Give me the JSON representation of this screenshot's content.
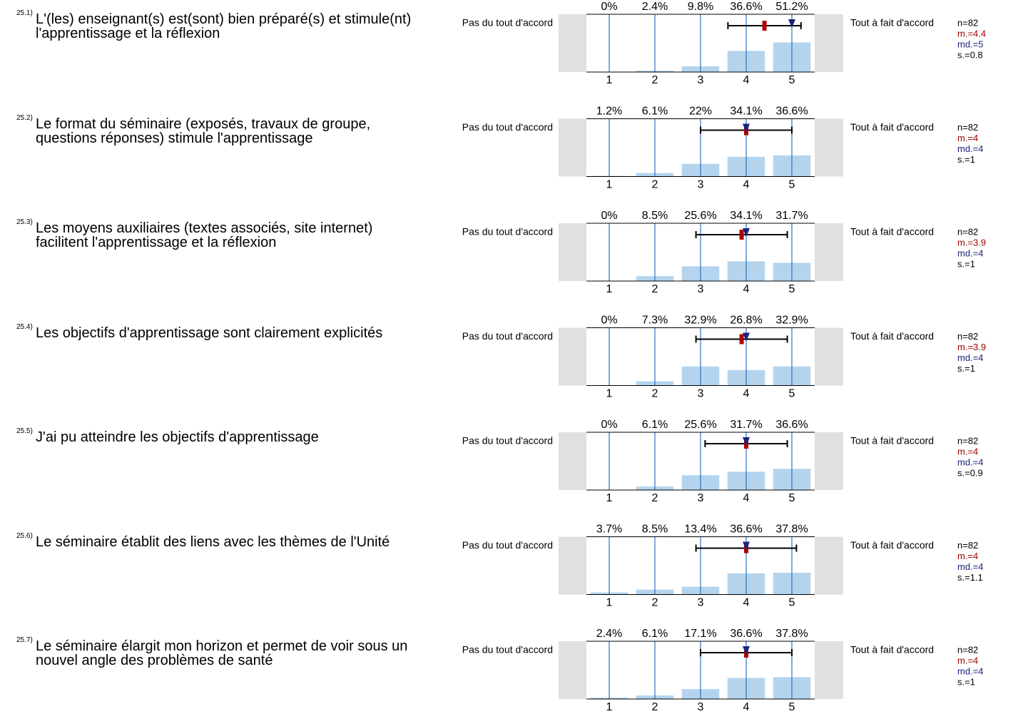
{
  "chart_data": [
    {
      "type": "bar",
      "number": "25.1)",
      "title": "L'(les) enseignant(s) est(sont) bien préparé(s) et stimule(nt) l'apprentissage et la réflexion",
      "left_label": "Pas du tout d'accord",
      "right_label": "Tout à fait d'accord",
      "x": [
        1,
        2,
        3,
        4,
        5
      ],
      "values": [
        0,
        2.4,
        9.8,
        36.6,
        51.2
      ],
      "value_labels": [
        "0%",
        "2.4%",
        "9.8%",
        "36.6%",
        "51.2%"
      ],
      "xlim": [
        0.5,
        5.5
      ],
      "ylim": [
        0,
        100
      ],
      "n": {
        "value": 82,
        "label": "n=82"
      },
      "mean": {
        "value": 4.4,
        "label": "m.=4.4"
      },
      "median": {
        "value": 5,
        "label": "md.=5"
      },
      "sd": {
        "value": 0.8,
        "label": "s.=0.8"
      }
    },
    {
      "type": "bar",
      "number": "25.2)",
      "title": "Le format du séminaire (exposés, travaux de groupe, questions réponses) stimule l'apprentissage",
      "left_label": "Pas du tout d'accord",
      "right_label": "Tout à fait d'accord",
      "x": [
        1,
        2,
        3,
        4,
        5
      ],
      "values": [
        1.2,
        6.1,
        22,
        34.1,
        36.6
      ],
      "value_labels": [
        "1.2%",
        "6.1%",
        "22%",
        "34.1%",
        "36.6%"
      ],
      "xlim": [
        0.5,
        5.5
      ],
      "ylim": [
        0,
        100
      ],
      "n": {
        "value": 82,
        "label": "n=82"
      },
      "mean": {
        "value": 4,
        "label": "m.=4"
      },
      "median": {
        "value": 4,
        "label": "md.=4"
      },
      "sd": {
        "value": 1,
        "label": "s.=1"
      }
    },
    {
      "type": "bar",
      "number": "25.3)",
      "title": "Les moyens auxiliaires (textes associés, site internet) facilitent l'apprentissage et la réflexion",
      "left_label": "Pas du tout d'accord",
      "right_label": "Tout à fait d'accord",
      "x": [
        1,
        2,
        3,
        4,
        5
      ],
      "values": [
        0,
        8.5,
        25.6,
        34.1,
        31.7
      ],
      "value_labels": [
        "0%",
        "8.5%",
        "25.6%",
        "34.1%",
        "31.7%"
      ],
      "xlim": [
        0.5,
        5.5
      ],
      "ylim": [
        0,
        100
      ],
      "n": {
        "value": 82,
        "label": "n=82"
      },
      "mean": {
        "value": 3.9,
        "label": "m.=3.9"
      },
      "median": {
        "value": 4,
        "label": "md.=4"
      },
      "sd": {
        "value": 1,
        "label": "s.=1"
      }
    },
    {
      "type": "bar",
      "number": "25.4)",
      "title": "Les objectifs d'apprentissage sont clairement explicités",
      "left_label": "Pas du tout d'accord",
      "right_label": "Tout à fait d'accord",
      "x": [
        1,
        2,
        3,
        4,
        5
      ],
      "values": [
        0,
        7.3,
        32.9,
        26.8,
        32.9
      ],
      "value_labels": [
        "0%",
        "7.3%",
        "32.9%",
        "26.8%",
        "32.9%"
      ],
      "xlim": [
        0.5,
        5.5
      ],
      "ylim": [
        0,
        100
      ],
      "n": {
        "value": 82,
        "label": "n=82"
      },
      "mean": {
        "value": 3.9,
        "label": "m.=3.9"
      },
      "median": {
        "value": 4,
        "label": "md.=4"
      },
      "sd": {
        "value": 1,
        "label": "s.=1"
      }
    },
    {
      "type": "bar",
      "number": "25.5)",
      "title": "J'ai pu atteindre les objectifs d'apprentissage",
      "left_label": "Pas du tout d'accord",
      "right_label": "Tout à fait d'accord",
      "x": [
        1,
        2,
        3,
        4,
        5
      ],
      "values": [
        0,
        6.1,
        25.6,
        31.7,
        36.6
      ],
      "value_labels": [
        "0%",
        "6.1%",
        "25.6%",
        "31.7%",
        "36.6%"
      ],
      "xlim": [
        0.5,
        5.5
      ],
      "ylim": [
        0,
        100
      ],
      "n": {
        "value": 82,
        "label": "n=82"
      },
      "mean": {
        "value": 4,
        "label": "m.=4"
      },
      "median": {
        "value": 4,
        "label": "md.=4"
      },
      "sd": {
        "value": 0.9,
        "label": "s.=0.9"
      }
    },
    {
      "type": "bar",
      "number": "25.6)",
      "title": "Le séminaire établit des liens avec les thèmes de l'Unité",
      "left_label": "Pas du tout d'accord",
      "right_label": "Tout à fait d'accord",
      "x": [
        1,
        2,
        3,
        4,
        5
      ],
      "values": [
        3.7,
        8.5,
        13.4,
        36.6,
        37.8
      ],
      "value_labels": [
        "3.7%",
        "8.5%",
        "13.4%",
        "36.6%",
        "37.8%"
      ],
      "xlim": [
        0.5,
        5.5
      ],
      "ylim": [
        0,
        100
      ],
      "n": {
        "value": 82,
        "label": "n=82"
      },
      "mean": {
        "value": 4,
        "label": "m.=4"
      },
      "median": {
        "value": 4,
        "label": "md.=4"
      },
      "sd": {
        "value": 1.1,
        "label": "s.=1.1"
      }
    },
    {
      "type": "bar",
      "number": "25.7)",
      "title": "Le séminaire élargit mon horizon et permet de voir sous un nouvel angle des problèmes de santé",
      "left_label": "Pas du tout d'accord",
      "right_label": "Tout à fait d'accord",
      "x": [
        1,
        2,
        3,
        4,
        5
      ],
      "values": [
        2.4,
        6.1,
        17.1,
        36.6,
        37.8
      ],
      "value_labels": [
        "2.4%",
        "6.1%",
        "17.1%",
        "36.6%",
        "37.8%"
      ],
      "xlim": [
        0.5,
        5.5
      ],
      "ylim": [
        0,
        100
      ],
      "n": {
        "value": 82,
        "label": "n=82"
      },
      "mean": {
        "value": 4,
        "label": "m.=4"
      },
      "median": {
        "value": 4,
        "label": "md.=4"
      },
      "sd": {
        "value": 1,
        "label": "s.=1"
      }
    }
  ]
}
